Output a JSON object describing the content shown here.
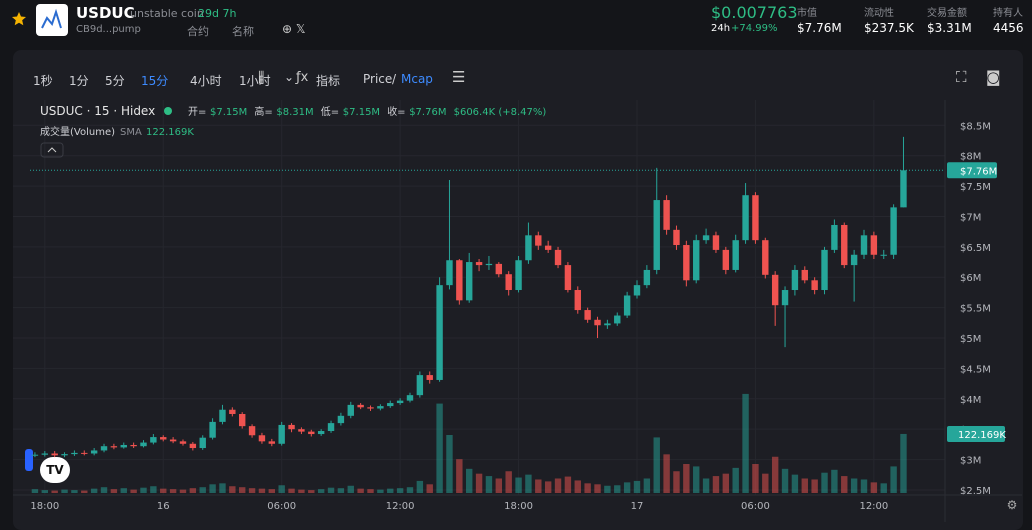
{
  "header": {
    "symbol": "USDUC",
    "name": "unstable coin",
    "age": "29d 7h",
    "address": "CB9d...pump",
    "contract": "合约",
    "name_search": "名称",
    "price": "$0.007763",
    "change_label": "24h",
    "change": "+74.99%",
    "stats": [
      {
        "label": "市值",
        "value": "$7.76M"
      },
      {
        "label": "流动性",
        "value": "$237.5K"
      },
      {
        "label": "交易金额",
        "value": "$3.31M"
      },
      {
        "label": "持有人",
        "value": "4456"
      }
    ]
  },
  "toolbar": {
    "intervals": [
      "1秒",
      "1分",
      "5分",
      "15分",
      "4小时",
      "1小时"
    ],
    "indicators": "指标",
    "price": "Price",
    "separator": "/",
    "mcap": "Mcap"
  },
  "chart_data": {
    "type": "candlestick",
    "title": "USDUC · 15 · Hidex",
    "legend": [
      {
        "key": "开=",
        "value": "$7.15M"
      },
      {
        "key": "高=",
        "value": "$8.31M"
      },
      {
        "key": "低=",
        "value": "$7.15M"
      },
      {
        "key": "收=",
        "value": "$7.76M"
      },
      {
        "key": "",
        "value": "$606.4K (+8.47%)"
      }
    ],
    "volume_title": "成交量(Volume)",
    "volume_sma": "SMA",
    "volume_sma_value": "122.169K",
    "open": [
      3.07,
      3.08,
      3.1,
      3.07,
      3.09,
      3.11,
      3.1,
      3.15,
      3.22,
      3.2,
      3.24,
      3.22,
      3.28,
      3.37,
      3.33,
      3.3,
      3.26,
      3.19,
      3.36,
      3.62,
      3.82,
      3.75,
      3.55,
      3.4,
      3.3,
      3.26,
      3.57,
      3.5,
      3.46,
      3.42,
      3.47,
      3.6,
      3.72,
      3.9,
      3.86,
      3.84,
      3.88,
      3.93,
      3.97,
      4.06,
      4.39,
      4.31,
      5.87,
      6.28,
      5.62,
      6.25,
      6.2,
      6.22,
      6.05,
      5.79,
      6.28,
      6.69,
      6.52,
      6.45,
      6.2,
      5.79,
      5.46,
      5.3,
      5.21,
      5.24,
      5.37,
      5.7,
      5.87,
      6.12,
      7.27,
      6.78,
      6.53,
      5.95,
      6.61,
      6.69,
      6.45,
      6.12,
      6.61,
      7.35,
      6.61,
      6.04,
      5.54,
      5.79,
      6.12,
      5.95,
      5.79,
      6.45,
      6.86,
      6.2,
      6.37,
      6.69,
      6.37,
      6.37,
      7.15
    ],
    "high": [
      3.12,
      3.14,
      3.14,
      3.12,
      3.15,
      3.15,
      3.19,
      3.26,
      3.26,
      3.28,
      3.28,
      3.32,
      3.42,
      3.4,
      3.37,
      3.33,
      3.29,
      3.4,
      3.68,
      3.9,
      3.86,
      3.78,
      3.58,
      3.44,
      3.34,
      3.62,
      3.6,
      3.53,
      3.49,
      3.5,
      3.64,
      3.77,
      3.95,
      3.93,
      3.89,
      3.91,
      3.97,
      4.01,
      4.1,
      4.45,
      4.45,
      6.0,
      7.6,
      6.3,
      6.4,
      6.3,
      6.35,
      6.25,
      6.1,
      6.35,
      6.9,
      6.75,
      6.6,
      6.5,
      6.25,
      5.85,
      5.5,
      5.35,
      5.3,
      5.42,
      5.76,
      5.95,
      6.2,
      7.8,
      7.35,
      6.85,
      6.6,
      6.7,
      6.8,
      6.75,
      6.5,
      6.7,
      7.55,
      7.4,
      6.65,
      6.1,
      5.85,
      6.2,
      6.18,
      6.0,
      6.5,
      6.95,
      6.9,
      6.45,
      6.78,
      6.75,
      6.45,
      7.2,
      8.31
    ],
    "low": [
      3.04,
      3.05,
      3.04,
      3.04,
      3.06,
      3.07,
      3.07,
      3.12,
      3.17,
      3.18,
      3.19,
      3.2,
      3.25,
      3.3,
      3.27,
      3.23,
      3.15,
      3.16,
      3.33,
      3.58,
      3.71,
      3.51,
      3.36,
      3.26,
      3.22,
      3.23,
      3.45,
      3.42,
      3.38,
      3.39,
      3.44,
      3.56,
      3.68,
      3.83,
      3.8,
      3.81,
      3.85,
      3.9,
      3.94,
      4.02,
      4.25,
      4.28,
      5.8,
      5.55,
      5.58,
      6.1,
      6.12,
      6.0,
      5.7,
      5.75,
      6.22,
      6.45,
      6.4,
      6.15,
      5.75,
      5.4,
      5.25,
      5.0,
      5.15,
      5.2,
      5.33,
      5.65,
      5.82,
      6.05,
      6.7,
      6.45,
      5.85,
      5.9,
      6.55,
      6.4,
      6.05,
      6.08,
      6.55,
      6.55,
      5.98,
      5.2,
      4.85,
      5.7,
      5.9,
      5.72,
      5.72,
      6.4,
      6.15,
      5.6,
      6.3,
      6.3,
      6.3,
      6.3,
      7.15
    ],
    "close": [
      3.08,
      3.1,
      3.07,
      3.09,
      3.11,
      3.1,
      3.15,
      3.22,
      3.2,
      3.24,
      3.22,
      3.28,
      3.37,
      3.33,
      3.3,
      3.26,
      3.19,
      3.36,
      3.62,
      3.82,
      3.75,
      3.55,
      3.4,
      3.3,
      3.26,
      3.57,
      3.5,
      3.46,
      3.42,
      3.47,
      3.6,
      3.72,
      3.9,
      3.86,
      3.84,
      3.88,
      3.93,
      3.97,
      4.06,
      4.39,
      4.31,
      5.87,
      6.28,
      5.62,
      6.25,
      6.2,
      6.22,
      6.05,
      5.79,
      6.28,
      6.69,
      6.52,
      6.45,
      6.2,
      5.79,
      5.46,
      5.3,
      5.21,
      5.24,
      5.37,
      5.7,
      5.87,
      6.12,
      7.27,
      6.78,
      6.53,
      5.95,
      6.61,
      6.69,
      6.45,
      6.12,
      6.61,
      7.35,
      6.61,
      6.04,
      5.54,
      5.79,
      6.12,
      5.95,
      5.79,
      6.45,
      6.86,
      6.2,
      6.37,
      6.69,
      6.37,
      6.37,
      7.15,
      7.76
    ],
    "volume": [
      8,
      6,
      5,
      7,
      6,
      5,
      9,
      12,
      8,
      10,
      7,
      11,
      14,
      9,
      8,
      7,
      10,
      12,
      18,
      20,
      14,
      12,
      10,
      9,
      8,
      16,
      9,
      7,
      6,
      8,
      11,
      10,
      15,
      9,
      8,
      7,
      9,
      10,
      12,
      25,
      18,
      185,
      120,
      70,
      50,
      40,
      35,
      30,
      45,
      32,
      38,
      28,
      24,
      30,
      34,
      26,
      20,
      18,
      15,
      16,
      22,
      25,
      30,
      115,
      80,
      45,
      60,
      55,
      30,
      35,
      40,
      52,
      205,
      60,
      40,
      75,
      50,
      38,
      30,
      28,
      42,
      48,
      35,
      30,
      28,
      22,
      20,
      55,
      122.169
    ],
    "up_color": "#26a69a",
    "down_color": "#ef5350",
    "ylim": [
      2.45,
      8.9
    ],
    "yticks": [
      {
        "value": 2.5,
        "label": "$2.5M"
      },
      {
        "value": 3,
        "label": "$3M"
      },
      {
        "value": 3.5,
        "label": "$3.5M"
      },
      {
        "value": 4,
        "label": "$4M"
      },
      {
        "value": 4.5,
        "label": "$4.5M"
      },
      {
        "value": 5,
        "label": "$5M"
      },
      {
        "value": 5.5,
        "label": "$5.5M"
      },
      {
        "value": 6,
        "label": "$6M"
      },
      {
        "value": 6.5,
        "label": "$6.5M"
      },
      {
        "value": 7,
        "label": "$7M"
      },
      {
        "value": 7.5,
        "label": "$7.5M"
      },
      {
        "value": 8,
        "label": "$8M"
      },
      {
        "value": 8.5,
        "label": "$8.5M"
      }
    ],
    "xlim": [
      -0.5,
      91.7
    ],
    "xticks": [
      {
        "value": 1,
        "label": "18:00"
      },
      {
        "value": 13,
        "label": "16"
      },
      {
        "value": 25,
        "label": "06:00"
      },
      {
        "value": 37,
        "label": "12:00"
      },
      {
        "value": 49,
        "label": "18:00"
      },
      {
        "value": 61,
        "label": "17"
      },
      {
        "value": 73,
        "label": "06:00"
      },
      {
        "value": 85,
        "label": "12:00"
      }
    ],
    "volume_lim": [
      0,
      811
    ],
    "last_price": {
      "value": 7.76,
      "label": "$7.76M"
    },
    "last_volume": {
      "value": 122.169,
      "label": "122.169K"
    },
    "grid": true
  }
}
